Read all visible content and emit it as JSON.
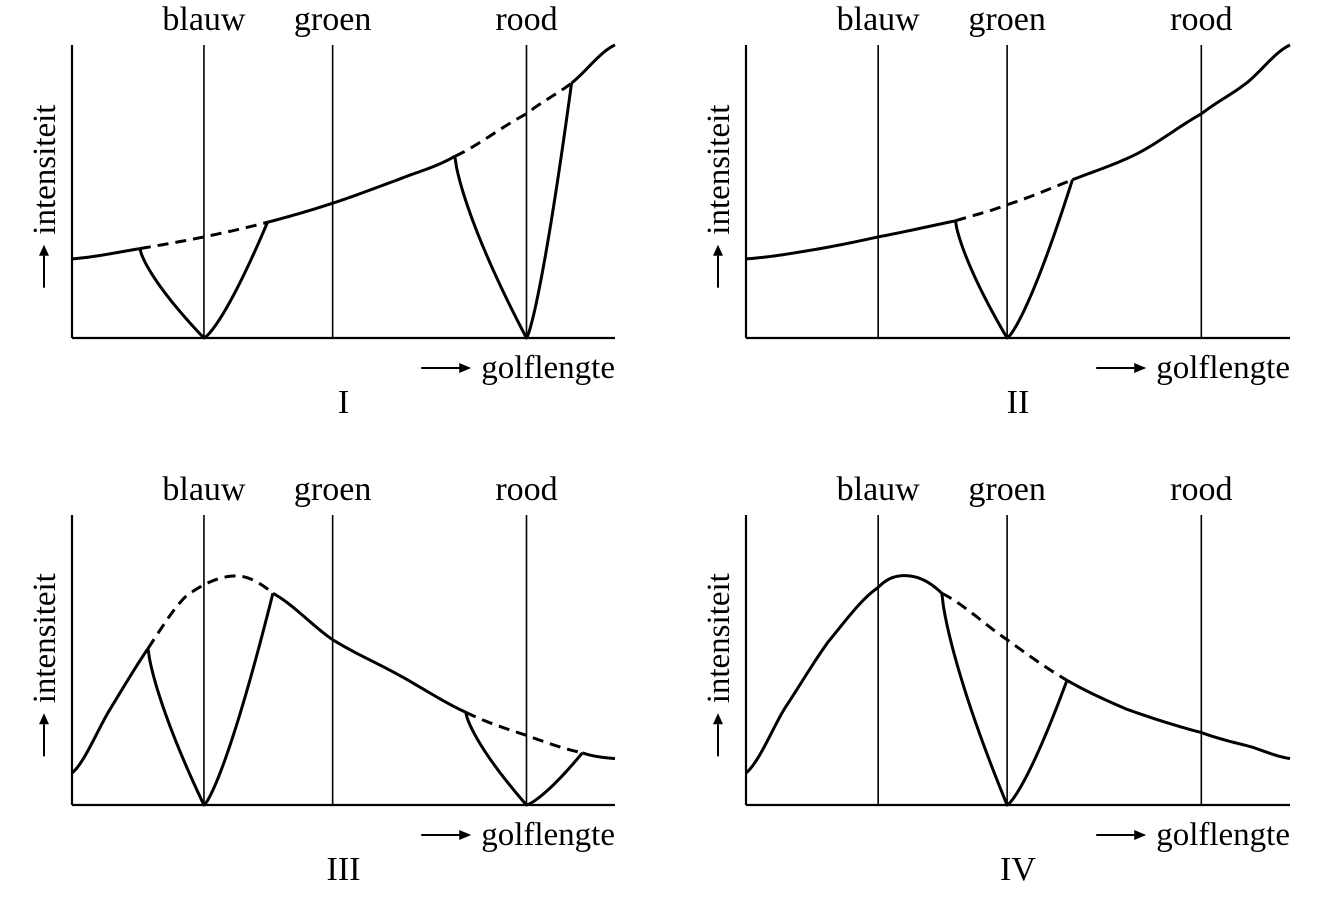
{
  "chart_data": [
    {
      "type": "line",
      "title": "I",
      "xlabel": "golflengte",
      "ylabel": "intensiteit",
      "axis_arrows": true,
      "xlim": [
        0,
        1
      ],
      "ylim": [
        0,
        1
      ],
      "reference_lines": [
        {
          "label": "blauw",
          "x": 0.243
        },
        {
          "label": "groen",
          "x": 0.48
        },
        {
          "label": "rood",
          "x": 0.837
        }
      ],
      "curve": [
        [
          0,
          0.27
        ],
        [
          0.125,
          0.305
        ],
        [
          0.243,
          0.345
        ],
        [
          0.36,
          0.395
        ],
        [
          0.48,
          0.46
        ],
        [
          0.6,
          0.54
        ],
        [
          0.705,
          0.62
        ],
        [
          0.837,
          0.765
        ],
        [
          0.92,
          0.87
        ],
        [
          1,
          1
        ]
      ],
      "absorption_dips": [
        {
          "from": 0.125,
          "at": 0.243,
          "to": 0.36,
          "min": 0
        },
        {
          "from": 0.705,
          "at": 0.837,
          "to": 0.92,
          "min": 0
        }
      ]
    },
    {
      "type": "line",
      "title": "II",
      "xlabel": "golflengte",
      "ylabel": "intensiteit",
      "axis_arrows": true,
      "xlim": [
        0,
        1
      ],
      "ylim": [
        0,
        1
      ],
      "reference_lines": [
        {
          "label": "blauw",
          "x": 0.243
        },
        {
          "label": "groen",
          "x": 0.48
        },
        {
          "label": "rood",
          "x": 0.837
        }
      ],
      "curve": [
        [
          0,
          0.27
        ],
        [
          0.12,
          0.3
        ],
        [
          0.243,
          0.345
        ],
        [
          0.385,
          0.4
        ],
        [
          0.48,
          0.455
        ],
        [
          0.6,
          0.54
        ],
        [
          0.72,
          0.63
        ],
        [
          0.837,
          0.765
        ],
        [
          0.92,
          0.87
        ],
        [
          1,
          1
        ]
      ],
      "absorption_dips": [
        {
          "from": 0.385,
          "at": 0.48,
          "to": 0.6,
          "min": 0
        }
      ]
    },
    {
      "type": "line",
      "title": "III",
      "xlabel": "golflengte",
      "ylabel": "intensiteit",
      "axis_arrows": true,
      "xlim": [
        0,
        1
      ],
      "ylim": [
        0,
        1
      ],
      "reference_lines": [
        {
          "label": "blauw",
          "x": 0.243
        },
        {
          "label": "groen",
          "x": 0.48
        },
        {
          "label": "rood",
          "x": 0.837
        }
      ],
      "curve": [
        [
          0,
          0.11
        ],
        [
          0.07,
          0.33
        ],
        [
          0.14,
          0.54
        ],
        [
          0.21,
          0.72
        ],
        [
          0.3,
          0.79
        ],
        [
          0.37,
          0.73
        ],
        [
          0.48,
          0.57
        ],
        [
          0.6,
          0.45
        ],
        [
          0.725,
          0.32
        ],
        [
          0.837,
          0.24
        ],
        [
          0.94,
          0.18
        ],
        [
          1,
          0.16
        ]
      ],
      "absorption_dips": [
        {
          "from": 0.14,
          "at": 0.243,
          "to": 0.37,
          "min": 0
        },
        {
          "from": 0.725,
          "at": 0.837,
          "to": 0.94,
          "min": 0
        }
      ]
    },
    {
      "type": "line",
      "title": "IV",
      "xlabel": "golflengte",
      "ylabel": "intensiteit",
      "axis_arrows": true,
      "xlim": [
        0,
        1
      ],
      "ylim": [
        0,
        1
      ],
      "reference_lines": [
        {
          "label": "blauw",
          "x": 0.243
        },
        {
          "label": "groen",
          "x": 0.48
        },
        {
          "label": "rood",
          "x": 0.837
        }
      ],
      "curve": [
        [
          0,
          0.11
        ],
        [
          0.07,
          0.33
        ],
        [
          0.15,
          0.56
        ],
        [
          0.243,
          0.75
        ],
        [
          0.3,
          0.79
        ],
        [
          0.36,
          0.73
        ],
        [
          0.48,
          0.57
        ],
        [
          0.59,
          0.43
        ],
        [
          0.7,
          0.33
        ],
        [
          0.837,
          0.25
        ],
        [
          0.93,
          0.2
        ],
        [
          1,
          0.16
        ]
      ],
      "absorption_dips": [
        {
          "from": 0.36,
          "at": 0.48,
          "to": 0.59,
          "min": 0
        }
      ]
    }
  ]
}
